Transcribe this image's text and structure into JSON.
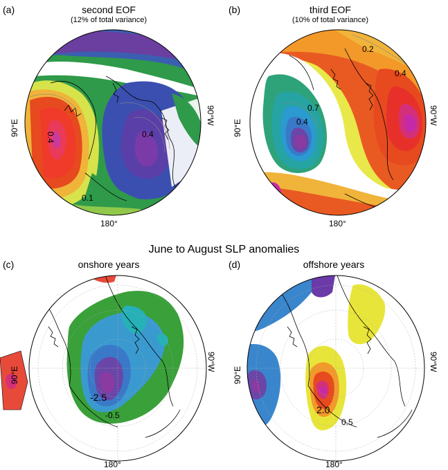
{
  "figure": {
    "main_heading": "June to August SLP anomalies",
    "panels": [
      {
        "letter": "(a)",
        "title": "second EOF",
        "subtitle": "(12% of total variance)",
        "label_left": "90°E",
        "label_right": "90°W",
        "label_bottom": "180°",
        "contour_labels": [
          "0.4",
          "0.4",
          "0.1"
        ]
      },
      {
        "letter": "(b)",
        "title": "third EOF",
        "subtitle": "(10% of total variance)",
        "label_left": "90°E",
        "label_right": "90°W",
        "label_bottom": "180°",
        "contour_labels": [
          "0.2",
          "0.4",
          "0.7",
          "0.4"
        ]
      },
      {
        "letter": "(c)",
        "title": "onshore years",
        "label_left": "90°E",
        "label_right": "90°W",
        "label_bottom": "180°",
        "contour_labels": [
          "-2.5",
          "-0.5"
        ]
      },
      {
        "letter": "(d)",
        "title": "offshore years",
        "label_left": "90°E",
        "label_right": "90°W",
        "label_bottom": "180°",
        "contour_labels": [
          "2.0",
          "0.5"
        ]
      }
    ]
  }
}
